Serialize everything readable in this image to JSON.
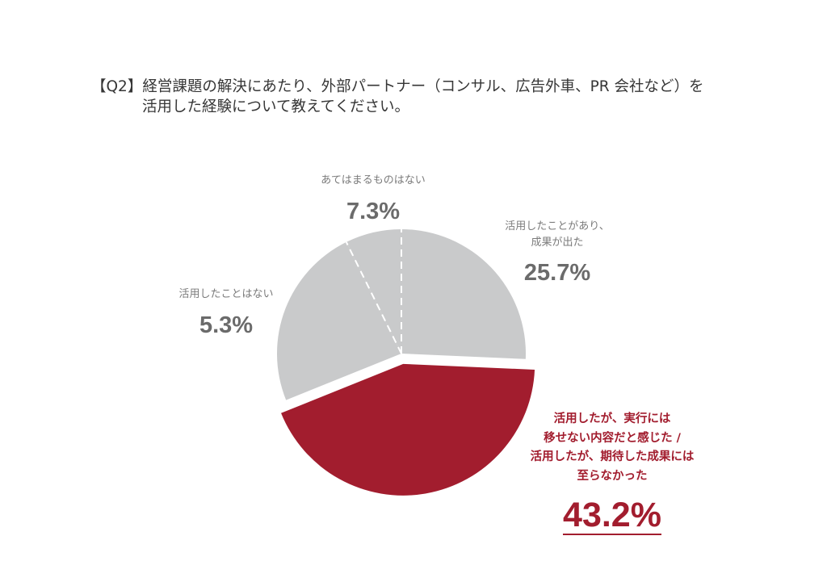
{
  "chart_data": {
    "type": "pie",
    "title": [
      "【Q2】経営課題の解決にあたり、外部パートナー（コンサル、広告外車、PR 会社など）を",
      "活用した経験について教えてください。"
    ],
    "unit": "%",
    "slices": [
      {
        "label_lines": [
          "活用したことがあり、",
          "成果が出た"
        ],
        "value": 25.7,
        "color": "#c9cacb",
        "highlight": false
      },
      {
        "label_lines": [
          "活用したが、実行には",
          "移せない内容だと感じた /",
          "活用したが、期待した成果には",
          "至らなかった"
        ],
        "value": 43.2,
        "color": "#a21d2e",
        "highlight": true
      },
      {
        "label_lines": [
          "活用したことはない"
        ],
        "value": 5.3,
        "color": "#c9cacb",
        "highlight": false
      },
      {
        "label_lines": [
          "あてはまるものはない"
        ],
        "value": 7.3,
        "color": "#c9cacb",
        "highlight": false
      }
    ]
  }
}
